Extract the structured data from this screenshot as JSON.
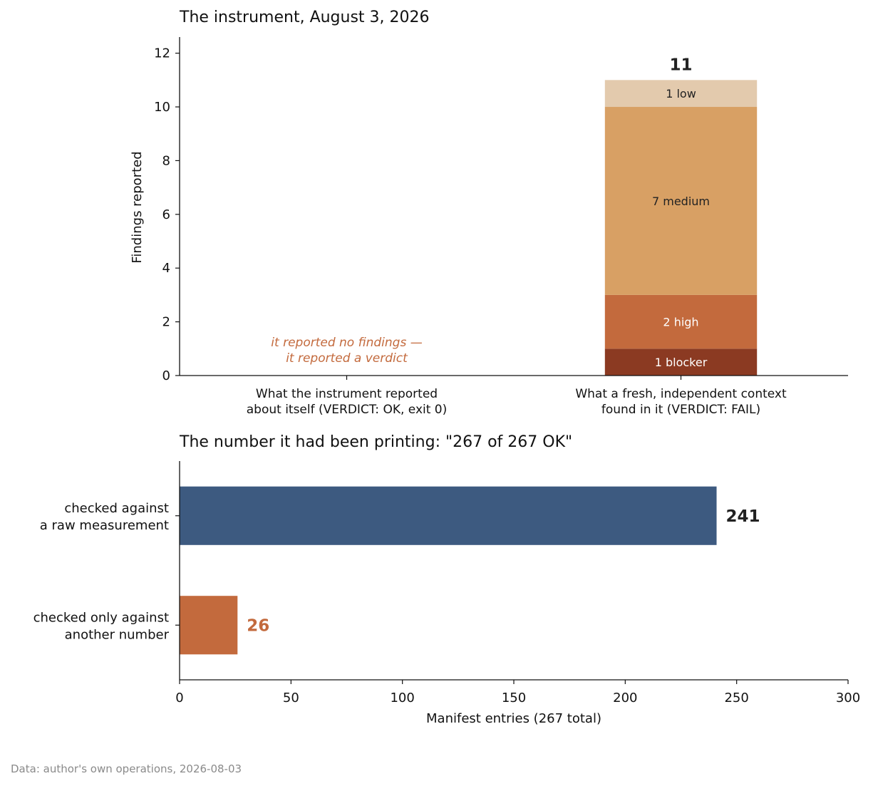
{
  "chart_data": [
    {
      "type": "bar",
      "stacked": true,
      "title": "The instrument, August 3, 2026",
      "ylabel": "Findings reported",
      "ylim": [
        0,
        12.6
      ],
      "yticks": [
        "0",
        "2",
        "4",
        "6",
        "8",
        "10",
        "12"
      ],
      "grid": false,
      "categories": [
        [
          "What the instrument reported",
          "about itself (VERDICT: OK, exit 0)"
        ],
        [
          "What a fresh, independent context",
          "found in it (VERDICT: FAIL)"
        ]
      ],
      "series": [
        {
          "name": "blocker",
          "values": [
            0,
            1
          ],
          "color": "#8b3a22",
          "label": "1 blocker",
          "label_color": "#ffffff"
        },
        {
          "name": "high",
          "values": [
            0,
            2
          ],
          "color": "#c36a3d",
          "label": "2 high",
          "label_color": "#ffffff"
        },
        {
          "name": "medium",
          "values": [
            0,
            7
          ],
          "color": "#d8a064",
          "label": "7 medium",
          "label_color": "#222222"
        },
        {
          "name": "low",
          "values": [
            0,
            1
          ],
          "color": "#e3caad",
          "label": "1 low",
          "label_color": "#222222"
        }
      ],
      "total_label": "11",
      "annotation": {
        "lines": [
          "it reported no findings —",
          "it reported a verdict"
        ],
        "color": "#c36a3d"
      }
    },
    {
      "type": "bar",
      "orientation": "horizontal",
      "title": "The number it had been printing: \"267 of 267 OK\"",
      "xlabel": "Manifest entries (267 total)",
      "xlim": [
        0,
        300
      ],
      "xticks": [
        "0",
        "50",
        "100",
        "150",
        "200",
        "250",
        "300"
      ],
      "grid": false,
      "categories": [
        [
          "checked against",
          "a raw measurement"
        ],
        [
          "checked only against",
          "another number"
        ]
      ],
      "values": [
        241,
        26
      ],
      "value_labels": [
        "241",
        "26"
      ],
      "colors": [
        "#3d5a80",
        "#c36a3d"
      ],
      "label_colors": [
        "#222222",
        "#c36a3d"
      ]
    }
  ],
  "footer": "Data: author's own operations, 2026-08-03"
}
